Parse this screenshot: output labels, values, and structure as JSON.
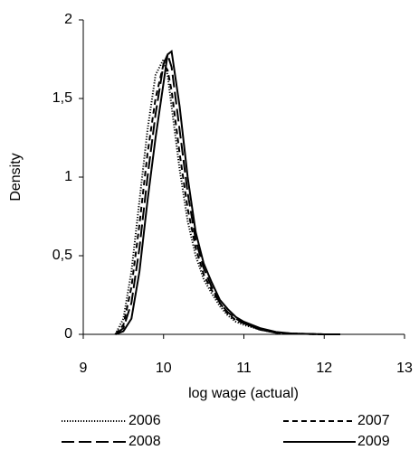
{
  "chart_data": {
    "type": "line",
    "xlabel": "log wage (actual)",
    "ylabel": "Density",
    "x": [
      9.4,
      9.5,
      9.6,
      9.7,
      9.8,
      9.9,
      10.0,
      10.05,
      10.1,
      10.2,
      10.3,
      10.4,
      10.5,
      10.6,
      10.7,
      10.8,
      10.9,
      11.0,
      11.2,
      11.4,
      11.6,
      12.0,
      12.2
    ],
    "series": [
      {
        "name": "2006",
        "color": "#000000",
        "line_style": "dotted",
        "values": [
          0,
          0.1,
          0.4,
          0.85,
          1.3,
          1.65,
          1.75,
          1.65,
          1.45,
          1.05,
          0.72,
          0.5,
          0.35,
          0.26,
          0.18,
          0.12,
          0.08,
          0.06,
          0.03,
          0.01,
          0.005,
          0,
          0
        ]
      },
      {
        "name": "2007",
        "color": "#000000",
        "line_style": "dashed",
        "values": [
          0,
          0.06,
          0.3,
          0.7,
          1.15,
          1.5,
          1.72,
          1.68,
          1.55,
          1.15,
          0.8,
          0.55,
          0.38,
          0.28,
          0.2,
          0.13,
          0.09,
          0.07,
          0.03,
          0.01,
          0.005,
          0,
          0
        ]
      },
      {
        "name": "2008",
        "color": "#000000",
        "line_style": "longdash",
        "values": [
          0,
          0.04,
          0.2,
          0.55,
          1.0,
          1.4,
          1.72,
          1.78,
          1.7,
          1.3,
          0.9,
          0.6,
          0.42,
          0.3,
          0.2,
          0.14,
          0.1,
          0.07,
          0.03,
          0.01,
          0.005,
          0,
          0
        ]
      },
      {
        "name": "2009",
        "color": "#000000",
        "line_style": "solid",
        "values": [
          0,
          0.02,
          0.1,
          0.4,
          0.85,
          1.25,
          1.6,
          1.78,
          1.8,
          1.45,
          1.0,
          0.65,
          0.45,
          0.33,
          0.22,
          0.16,
          0.11,
          0.08,
          0.04,
          0.015,
          0.005,
          0,
          0
        ]
      }
    ],
    "xlim": [
      9,
      13
    ],
    "xticks": [
      9,
      10,
      11,
      12,
      13
    ],
    "ylim": [
      0,
      2
    ],
    "yticks": [
      0,
      {
        "value": 0.5,
        "label": "0,5"
      },
      1,
      {
        "value": 1.5,
        "label": "1,5"
      },
      2
    ],
    "grid": false,
    "legend": "bottom"
  }
}
